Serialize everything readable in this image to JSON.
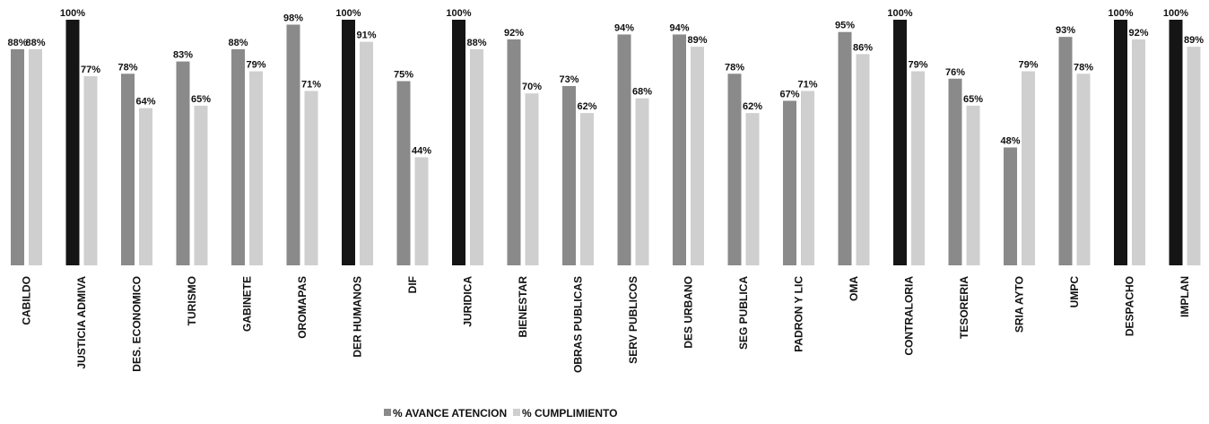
{
  "chart_data": {
    "type": "bar",
    "categories": [
      "CABILDO",
      "JUSTICIA ADMIVA",
      "DES. ECONOMICO",
      "TURISMO",
      "GABINETE",
      "OROMAPAS",
      "DER HUMANOS",
      "DIF",
      "JURIDICA",
      "BIENESTAR",
      "OBRAS PUBLICAS",
      "SERV PUBLICOS",
      "DES URBANO",
      "SEG PUBLICA",
      "PADRON Y LIC",
      "OMA",
      "CONTRALORIA",
      "TESORERIA",
      "SRIA AYTO",
      "UMPC",
      "DESPACHO",
      "IMPLAN"
    ],
    "series": [
      {
        "name": "% AVANCE ATENCION",
        "values": [
          88,
          100,
          78,
          83,
          88,
          98,
          100,
          75,
          100,
          92,
          73,
          94,
          94,
          78,
          67,
          95,
          100,
          76,
          48,
          93,
          100,
          100
        ],
        "labels": [
          "88%",
          "100%",
          "78%",
          "83%",
          "88%",
          "98%",
          "100%",
          "75%",
          "100%",
          "92%",
          "73%",
          "94%",
          "94%",
          "78%",
          "67%",
          "95%",
          "100%",
          "76%",
          "48%",
          "93%",
          "100%",
          "100%"
        ]
      },
      {
        "name": "% CUMPLIMIENTO",
        "values": [
          88,
          77,
          64,
          65,
          79,
          71,
          91,
          44,
          88,
          70,
          62,
          68,
          89,
          62,
          71,
          86,
          79,
          65,
          79,
          78,
          92,
          89
        ],
        "labels": [
          "88%",
          "77%",
          "64%",
          "65%",
          "79%",
          "71%",
          "91%",
          "44%",
          "88%",
          "70%",
          "62%",
          "68%",
          "89%",
          "62%",
          "71%",
          "86%",
          "79%",
          "65%",
          "79%",
          "78%",
          "92%",
          "89%"
        ]
      }
    ],
    "ylim": [
      0,
      100
    ],
    "legend": "bottom-center",
    "grid": false,
    "colors": {
      "avance": "#8a8a8a",
      "avance_full": "#151515",
      "cumplimiento": "#cfcfcf",
      "text": "#111111"
    }
  }
}
